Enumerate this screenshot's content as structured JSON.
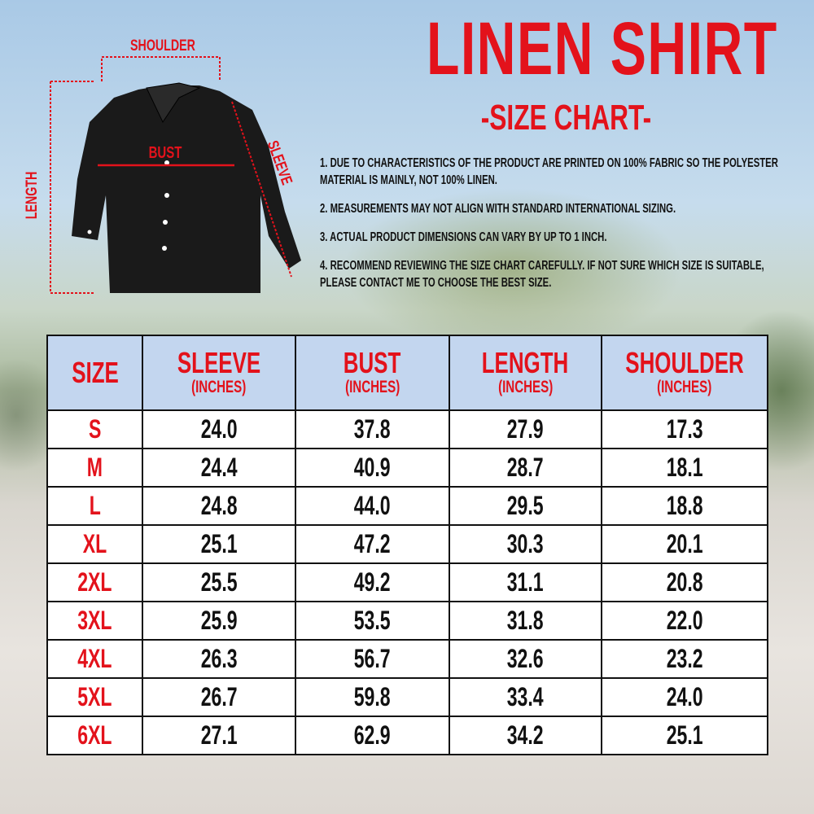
{
  "title": "LINEN SHIRT",
  "subtitle": "-SIZE CHART-",
  "notes": [
    "1. DUE TO CHARACTERISTICS OF THE PRODUCT ARE PRINTED ON 100% FABRIC SO THE POLYESTER MATERIAL IS MAINLY, NOT 100% LINEN.",
    "2. MEASUREMENTS MAY NOT ALIGN WITH STANDARD INTERNATIONAL SIZING.",
    "3. ACTUAL PRODUCT DIMENSIONS CAN VARY BY UP TO 1 INCH.",
    "4. RECOMMEND REVIEWING THE SIZE CHART CAREFULLY. IF NOT SURE WHICH SIZE IS SUITABLE, PLEASE CONTACT ME TO CHOOSE THE BEST SIZE."
  ],
  "diagram": {
    "shoulder": "SHOULDER",
    "bust": "BUST",
    "sleeve": "SLEEVE",
    "length": "LENGTH",
    "accent": "#e3121b"
  },
  "table": {
    "headers": [
      {
        "label": "SIZE",
        "unit": ""
      },
      {
        "label": "SLEEVE",
        "unit": "(INCHES)"
      },
      {
        "label": "BUST",
        "unit": "(INCHES)"
      },
      {
        "label": "LENGTH",
        "unit": "(INCHES)"
      },
      {
        "label": "SHOULDER",
        "unit": "(INCHES)"
      }
    ],
    "rows": [
      [
        "S",
        "24.0",
        "37.8",
        "27.9",
        "17.3"
      ],
      [
        "M",
        "24.4",
        "40.9",
        "28.7",
        "18.1"
      ],
      [
        "L",
        "24.8",
        "44.0",
        "29.5",
        "18.8"
      ],
      [
        "XL",
        "25.1",
        "47.2",
        "30.3",
        "20.1"
      ],
      [
        "2XL",
        "25.5",
        "49.2",
        "31.1",
        "20.8"
      ],
      [
        "3XL",
        "25.9",
        "53.5",
        "31.8",
        "22.0"
      ],
      [
        "4XL",
        "26.3",
        "56.7",
        "32.6",
        "23.2"
      ],
      [
        "5XL",
        "26.7",
        "59.8",
        "33.4",
        "24.0"
      ],
      [
        "6XL",
        "27.1",
        "62.9",
        "34.2",
        "25.1"
      ]
    ],
    "header_bg": "#c3d6ef"
  }
}
